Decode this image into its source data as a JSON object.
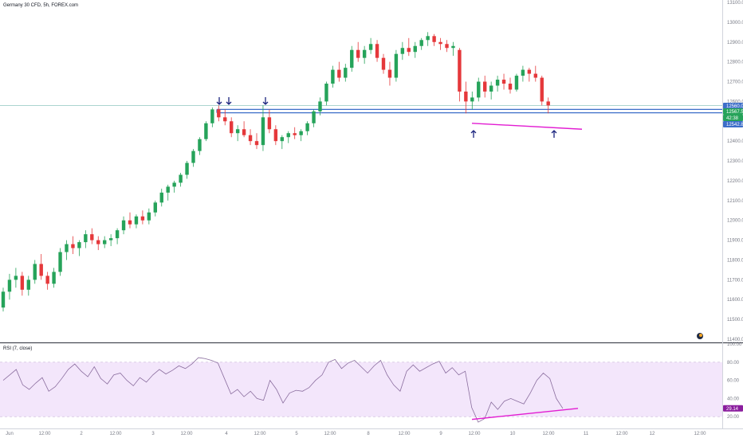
{
  "header": {
    "title": "Germany 30 CFD, 5h, FOREX.com"
  },
  "indicator": {
    "label": "RSI (7, close)"
  },
  "colors": {
    "up": "#26a35a",
    "down": "#e5383b",
    "support": "#3d6ec9",
    "hline": "#8fc6c0",
    "trend": "#e21dd2",
    "arrow": "#1a237e",
    "rsi_line": "#8a6d9e",
    "rsi_band": "#f3e6fb",
    "rsi_tag": "#8b1e9e",
    "axis": "#787b86"
  },
  "price_axis": {
    "ticks": [
      "13100.0",
      "13000.0",
      "12900.0",
      "12800.0",
      "12700.0",
      "12600.0",
      "12500.0",
      "12400.0",
      "12300.0",
      "12200.0",
      "12100.0",
      "12000.0",
      "11900.0",
      "11800.0",
      "11700.0",
      "11600.0",
      "11500.0",
      "11400.0"
    ],
    "tags": [
      {
        "text": "12560.0",
        "color": "#3d6ec9"
      },
      {
        "text": "12567.5",
        "color": "#26a35a"
      },
      {
        "text": "42:38",
        "color": "#26a35a"
      },
      {
        "text": "12542.8",
        "color": "#3d6ec9"
      }
    ]
  },
  "rsi_axis": {
    "ticks": [
      "100.00",
      "80.00",
      "60.00",
      "40.00",
      "20.00"
    ],
    "tag": "29.14"
  },
  "time_axis": {
    "labels": [
      "Jun",
      "12:00",
      "2",
      "12:00",
      "3",
      "12:00",
      "4",
      "12:00",
      "5",
      "12:00",
      "8",
      "12:00",
      "9",
      "12:00",
      "10",
      "12:00",
      "11",
      "12:00",
      "12",
      "12:00"
    ]
  },
  "chart_data": [
    {
      "type": "candlestick",
      "title": "Germany 30 CFD, 5h, FOREX.com",
      "ylim": [
        11400,
        13100
      ],
      "candles": [
        [
          11560,
          11660,
          11540,
          11640
        ],
        [
          11640,
          11730,
          11600,
          11700
        ],
        [
          11700,
          11760,
          11660,
          11720
        ],
        [
          11720,
          11740,
          11620,
          11650
        ],
        [
          11650,
          11720,
          11620,
          11700
        ],
        [
          11700,
          11800,
          11680,
          11780
        ],
        [
          11780,
          11830,
          11700,
          11720
        ],
        [
          11720,
          11740,
          11650,
          11680
        ],
        [
          11680,
          11760,
          11660,
          11740
        ],
        [
          11740,
          11860,
          11720,
          11840
        ],
        [
          11840,
          11900,
          11800,
          11880
        ],
        [
          11880,
          11920,
          11830,
          11860
        ],
        [
          11860,
          11900,
          11820,
          11890
        ],
        [
          11890,
          11950,
          11860,
          11930
        ],
        [
          11930,
          11960,
          11880,
          11900
        ],
        [
          11900,
          11920,
          11850,
          11880
        ],
        [
          11880,
          11920,
          11860,
          11900
        ],
        [
          11900,
          11930,
          11870,
          11910
        ],
        [
          11910,
          11960,
          11880,
          11950
        ],
        [
          11950,
          12020,
          11930,
          12000
        ],
        [
          12000,
          12040,
          11960,
          11980
        ],
        [
          11980,
          12030,
          11960,
          12020
        ],
        [
          12020,
          12050,
          11980,
          12000
        ],
        [
          12000,
          12060,
          11980,
          12040
        ],
        [
          12040,
          12100,
          12020,
          12090
        ],
        [
          12090,
          12160,
          12070,
          12140
        ],
        [
          12140,
          12180,
          12100,
          12170
        ],
        [
          12170,
          12200,
          12140,
          12190
        ],
        [
          12190,
          12240,
          12170,
          12230
        ],
        [
          12230,
          12300,
          12210,
          12290
        ],
        [
          12290,
          12360,
          12270,
          12350
        ],
        [
          12350,
          12420,
          12330,
          12410
        ],
        [
          12410,
          12500,
          12400,
          12490
        ],
        [
          12490,
          12570,
          12470,
          12560
        ],
        [
          12560,
          12580,
          12500,
          12520
        ],
        [
          12520,
          12560,
          12480,
          12500
        ],
        [
          12500,
          12520,
          12420,
          12440
        ],
        [
          12440,
          12480,
          12400,
          12460
        ],
        [
          12460,
          12500,
          12420,
          12430
        ],
        [
          12430,
          12460,
          12380,
          12400
        ],
        [
          12400,
          12440,
          12360,
          12380
        ],
        [
          12380,
          12580,
          12350,
          12520
        ],
        [
          12520,
          12560,
          12440,
          12460
        ],
        [
          12460,
          12480,
          12380,
          12400
        ],
        [
          12400,
          12430,
          12360,
          12420
        ],
        [
          12420,
          12450,
          12390,
          12440
        ],
        [
          12440,
          12470,
          12410,
          12430
        ],
        [
          12430,
          12460,
          12400,
          12450
        ],
        [
          12450,
          12500,
          12430,
          12490
        ],
        [
          12490,
          12560,
          12470,
          12550
        ],
        [
          12550,
          12620,
          12530,
          12600
        ],
        [
          12600,
          12700,
          12580,
          12690
        ],
        [
          12690,
          12780,
          12670,
          12760
        ],
        [
          12760,
          12800,
          12700,
          12720
        ],
        [
          12720,
          12790,
          12700,
          12770
        ],
        [
          12770,
          12880,
          12750,
          12860
        ],
        [
          12860,
          12900,
          12800,
          12820
        ],
        [
          12820,
          12880,
          12790,
          12860
        ],
        [
          12860,
          12920,
          12840,
          12890
        ],
        [
          12890,
          12910,
          12800,
          12820
        ],
        [
          12820,
          12840,
          12740,
          12760
        ],
        [
          12760,
          12800,
          12680,
          12720
        ],
        [
          12720,
          12860,
          12700,
          12840
        ],
        [
          12840,
          12900,
          12810,
          12870
        ],
        [
          12870,
          12920,
          12830,
          12850
        ],
        [
          12850,
          12900,
          12820,
          12880
        ],
        [
          12880,
          12920,
          12860,
          12910
        ],
        [
          12910,
          12950,
          12880,
          12930
        ],
        [
          12930,
          12940,
          12880,
          12900
        ],
        [
          12900,
          12920,
          12860,
          12890
        ],
        [
          12890,
          12910,
          12850,
          12870
        ],
        [
          12870,
          12900,
          12830,
          12880
        ],
        [
          12860,
          12870,
          12600,
          12650
        ],
        [
          12650,
          12700,
          12540,
          12600
        ],
        [
          12600,
          12650,
          12560,
          12620
        ],
        [
          12620,
          12720,
          12600,
          12700
        ],
        [
          12700,
          12730,
          12620,
          12650
        ],
        [
          12650,
          12700,
          12610,
          12680
        ],
        [
          12680,
          12730,
          12650,
          12710
        ],
        [
          12710,
          12740,
          12660,
          12690
        ],
        [
          12690,
          12720,
          12640,
          12660
        ],
        [
          12660,
          12740,
          12650,
          12730
        ],
        [
          12730,
          12780,
          12700,
          12760
        ],
        [
          12760,
          12770,
          12700,
          12740
        ],
        [
          12740,
          12780,
          12700,
          12720
        ],
        [
          12720,
          12730,
          12580,
          12600
        ],
        [
          12600,
          12620,
          12540,
          12580
        ]
      ],
      "support_levels": [
        12560.0,
        12542.8
      ],
      "reference_level": 12580.0,
      "trendline": [
        12490,
        12460
      ]
    },
    {
      "type": "line",
      "title": "RSI (7, close)",
      "ylim": [
        0,
        100
      ],
      "band": [
        20,
        80
      ],
      "values": [
        60,
        66,
        72,
        55,
        50,
        57,
        63,
        48,
        53,
        62,
        72,
        78,
        70,
        64,
        75,
        62,
        56,
        66,
        68,
        60,
        54,
        63,
        58,
        66,
        72,
        67,
        71,
        76,
        73,
        78,
        85,
        84,
        82,
        79,
        62,
        45,
        50,
        42,
        48,
        40,
        38,
        60,
        50,
        35,
        46,
        49,
        48,
        52,
        60,
        66,
        80,
        83,
        73,
        79,
        82,
        75,
        68,
        76,
        82,
        66,
        55,
        48,
        70,
        77,
        70,
        74,
        78,
        81,
        68,
        74,
        66,
        70,
        30,
        14,
        18,
        36,
        28,
        37,
        40,
        37,
        34,
        46,
        60,
        68,
        62,
        40,
        29
      ],
      "trendline": [
        17,
        29.14
      ],
      "last_value": 29.14
    }
  ]
}
